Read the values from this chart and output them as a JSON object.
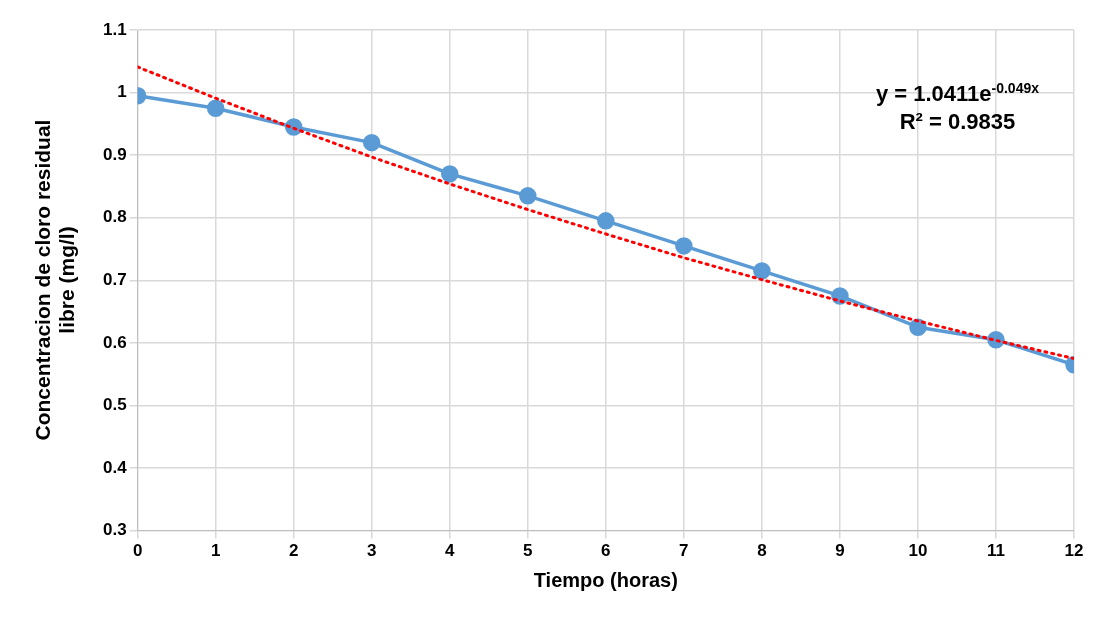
{
  "chart_data": {
    "type": "line",
    "xlabel": "Tiempo (horas)",
    "ylabel": "Concentracion de  cloro residual libre (mg/l)",
    "x": [
      0,
      1,
      2,
      3,
      4,
      5,
      6,
      7,
      8,
      9,
      10,
      11,
      12
    ],
    "series": [
      {
        "color": "#5b9bd5",
        "marker": "circle",
        "line_style": "solid",
        "values": [
          0.995,
          0.975,
          0.945,
          0.92,
          0.87,
          0.835,
          0.795,
          0.755,
          0.715,
          0.675,
          0.625,
          0.605,
          0.565
        ]
      },
      {
        "type": "line",
        "color": "#ff0000",
        "marker": "none",
        "line_style": "dotted",
        "x": [
          0,
          1,
          2,
          3,
          4,
          5,
          6,
          7,
          8,
          9,
          10,
          11,
          12
        ],
        "values": [
          1.041,
          0.991,
          0.943,
          0.897,
          0.854,
          0.813,
          0.774,
          0.736,
          0.701,
          0.667,
          0.635,
          0.604,
          0.575
        ]
      }
    ],
    "xlim": [
      0,
      12
    ],
    "xticks": [
      0,
      1,
      2,
      3,
      4,
      5,
      6,
      7,
      8,
      9,
      10,
      11,
      12
    ],
    "ylim": [
      0.3,
      1.1
    ],
    "yticks": [
      0.3,
      0.4,
      0.5,
      0.6,
      0.7,
      0.8,
      0.9,
      1,
      1.1
    ],
    "grid": true,
    "legend": false,
    "annotations": [
      "y = 1.0411e$^{-0.049x}$",
      "R² = 0.9835"
    ]
  }
}
